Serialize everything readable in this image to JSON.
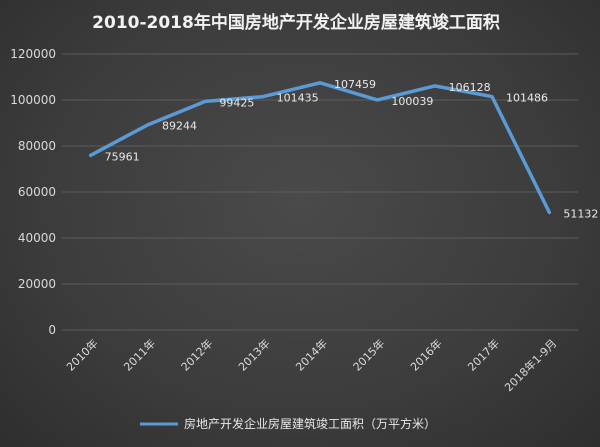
{
  "chart_data": {
    "type": "line",
    "title": "2010-2018年中国房地产开发企业房屋建筑竣工面积",
    "categories": [
      "2010年",
      "2011年",
      "2012年",
      "2013年",
      "2014年",
      "2015年",
      "2016年",
      "2017年",
      "2018年1-9月"
    ],
    "series": [
      {
        "name": "房地产开发企业房屋建筑竣工面积（万平方米）",
        "values": [
          75961,
          89244,
          99425,
          101435,
          107459,
          100039,
          106128,
          101486,
          51132
        ],
        "color": "#5b9bd5"
      }
    ],
    "yticks": [
      "0",
      "20000",
      "40000",
      "60000",
      "80000",
      "100000",
      "120000"
    ],
    "ylim": [
      0,
      120000
    ],
    "grid": true,
    "legend": "bottom"
  }
}
